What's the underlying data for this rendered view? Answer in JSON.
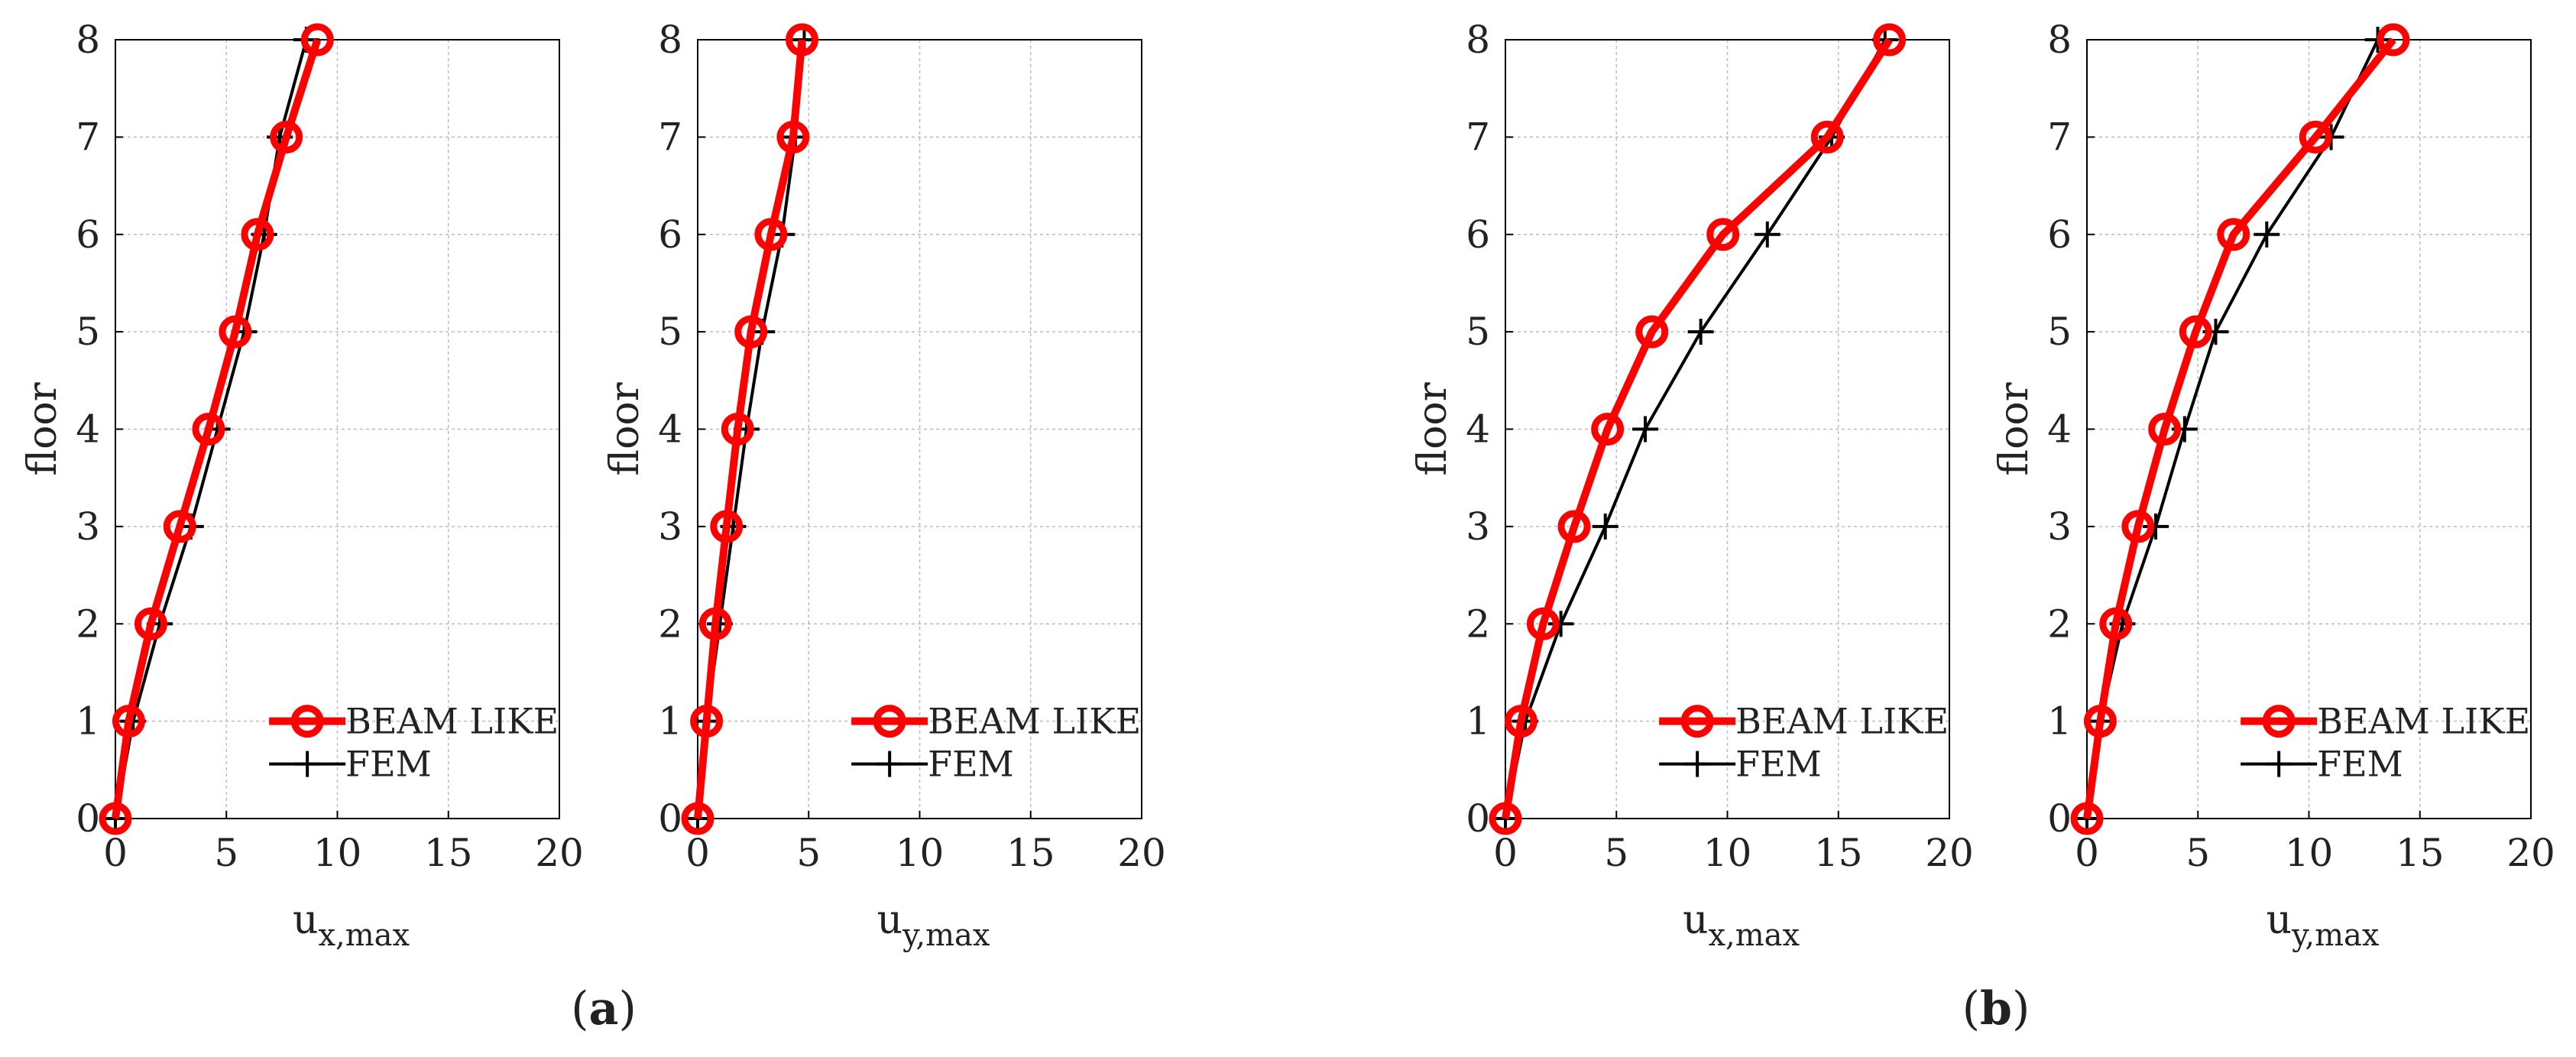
{
  "colors": {
    "beam_like": "#ff0000",
    "fem": "#000000",
    "grid": "#bdbdbd",
    "axis": "#000000"
  },
  "panel_labels": [
    {
      "open": "(",
      "letter": "a",
      "close": ")"
    },
    {
      "open": "(",
      "letter": "b",
      "close": ")"
    }
  ],
  "chart_data": [
    {
      "type": "line",
      "panel": "a",
      "xlabel_main": "u",
      "xlabel_sub": "x,max",
      "ylabel": "floor",
      "xlim": [
        0,
        20
      ],
      "ylim": [
        0,
        8
      ],
      "xticks": [
        0,
        5,
        10,
        15,
        20
      ],
      "yticks": [
        0,
        1,
        2,
        3,
        4,
        5,
        6,
        7,
        8
      ],
      "grid": true,
      "legend_position": "bottom-right",
      "series": [
        {
          "name": "BEAM LIKE",
          "marker": "circle",
          "points": [
            [
              0,
              0
            ],
            [
              0.6,
              1
            ],
            [
              1.6,
              2
            ],
            [
              2.9,
              3
            ],
            [
              4.2,
              4
            ],
            [
              5.4,
              5
            ],
            [
              6.4,
              6
            ],
            [
              7.7,
              7
            ],
            [
              9.1,
              8
            ]
          ]
        },
        {
          "name": "FEM",
          "marker": "plus",
          "points": [
            [
              0,
              0
            ],
            [
              0.8,
              1
            ],
            [
              2.0,
              2
            ],
            [
              3.4,
              3
            ],
            [
              4.6,
              4
            ],
            [
              5.8,
              5
            ],
            [
              6.7,
              6
            ],
            [
              7.4,
              7
            ],
            [
              8.6,
              8
            ]
          ]
        }
      ]
    },
    {
      "type": "line",
      "panel": "a",
      "xlabel_main": "u",
      "xlabel_sub": "y,max",
      "ylabel": "floor",
      "xlim": [
        0,
        20
      ],
      "ylim": [
        0,
        8
      ],
      "xticks": [
        0,
        5,
        10,
        15,
        20
      ],
      "yticks": [
        0,
        1,
        2,
        3,
        4,
        5,
        6,
        7,
        8
      ],
      "grid": true,
      "legend_position": "bottom-right",
      "series": [
        {
          "name": "BEAM LIKE",
          "marker": "circle",
          "points": [
            [
              0,
              0
            ],
            [
              0.4,
              1
            ],
            [
              0.8,
              2
            ],
            [
              1.3,
              3
            ],
            [
              1.8,
              4
            ],
            [
              2.4,
              5
            ],
            [
              3.3,
              6
            ],
            [
              4.3,
              7
            ],
            [
              4.7,
              8
            ]
          ]
        },
        {
          "name": "FEM",
          "marker": "plus",
          "points": [
            [
              0,
              0
            ],
            [
              0.4,
              1
            ],
            [
              1.0,
              2
            ],
            [
              1.6,
              3
            ],
            [
              2.2,
              4
            ],
            [
              2.9,
              5
            ],
            [
              3.8,
              6
            ],
            [
              4.4,
              7
            ],
            [
              4.8,
              8
            ]
          ]
        }
      ]
    },
    {
      "type": "line",
      "panel": "b",
      "xlabel_main": "u",
      "xlabel_sub": "x,max",
      "ylabel": "floor",
      "xlim": [
        0,
        20
      ],
      "ylim": [
        0,
        8
      ],
      "xticks": [
        0,
        5,
        10,
        15,
        20
      ],
      "yticks": [
        0,
        1,
        2,
        3,
        4,
        5,
        6,
        7,
        8
      ],
      "grid": true,
      "legend_position": "bottom-right",
      "series": [
        {
          "name": "BEAM LIKE",
          "marker": "circle",
          "points": [
            [
              0,
              0
            ],
            [
              0.7,
              1
            ],
            [
              1.7,
              2
            ],
            [
              3.1,
              3
            ],
            [
              4.6,
              4
            ],
            [
              6.6,
              5
            ],
            [
              9.8,
              6
            ],
            [
              14.5,
              7
            ],
            [
              17.3,
              8
            ]
          ]
        },
        {
          "name": "FEM",
          "marker": "plus",
          "points": [
            [
              0,
              0
            ],
            [
              0.9,
              1
            ],
            [
              2.5,
              2
            ],
            [
              4.5,
              3
            ],
            [
              6.3,
              4
            ],
            [
              8.8,
              5
            ],
            [
              11.8,
              6
            ],
            [
              14.7,
              7
            ],
            [
              17.1,
              8
            ]
          ]
        }
      ]
    },
    {
      "type": "line",
      "panel": "b",
      "xlabel_main": "u",
      "xlabel_sub": "y,max",
      "ylabel": "floor",
      "xlim": [
        0,
        20
      ],
      "ylim": [
        0,
        8
      ],
      "xticks": [
        0,
        5,
        10,
        15,
        20
      ],
      "yticks": [
        0,
        1,
        2,
        3,
        4,
        5,
        6,
        7,
        8
      ],
      "grid": true,
      "legend_position": "bottom-right",
      "series": [
        {
          "name": "BEAM LIKE",
          "marker": "circle",
          "points": [
            [
              0,
              0
            ],
            [
              0.6,
              1
            ],
            [
              1.3,
              2
            ],
            [
              2.3,
              3
            ],
            [
              3.5,
              4
            ],
            [
              4.9,
              5
            ],
            [
              6.6,
              6
            ],
            [
              10.3,
              7
            ],
            [
              13.8,
              8
            ]
          ]
        },
        {
          "name": "FEM",
          "marker": "plus",
          "points": [
            [
              0,
              0
            ],
            [
              0.6,
              1
            ],
            [
              1.6,
              2
            ],
            [
              3.1,
              3
            ],
            [
              4.4,
              4
            ],
            [
              5.8,
              5
            ],
            [
              8.1,
              6
            ],
            [
              11.0,
              7
            ],
            [
              13.1,
              8
            ]
          ]
        }
      ]
    }
  ]
}
